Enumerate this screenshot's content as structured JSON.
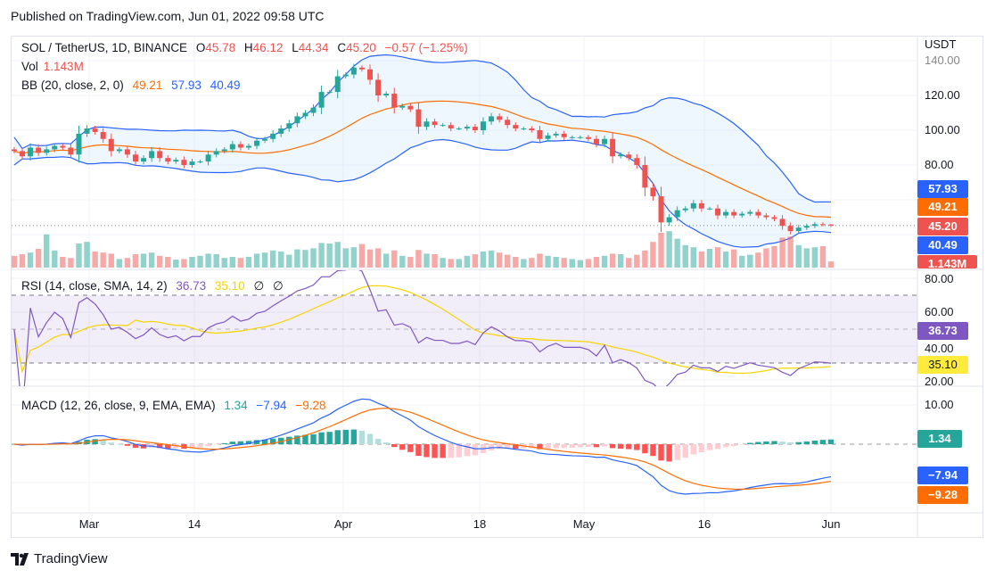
{
  "published": "Published on TradingView.com, Jun 01, 2022 09:58 UTC",
  "brand": "TradingView",
  "legend": {
    "symbol": "SOL / TetherUS, 1D, BINANCE",
    "o_label": "O",
    "o": "45.78",
    "h_label": "H",
    "h": "46.12",
    "l_label": "L",
    "l": "44.34",
    "c_label": "C",
    "c": "45.20",
    "change": "−0.57 (−1.25%)",
    "vol_label": "Vol",
    "vol": "1.143M",
    "bb_label": "BB (20, close, 2, 0)",
    "bb_basis": "49.21",
    "bb_upper": "57.93",
    "bb_lower": "40.49",
    "rsi_label": "RSI (14, close, SMA, 14, 2)",
    "rsi": "36.73",
    "rsi_ma": "35.10",
    "rsi_n1": "∅",
    "rsi_n2": "∅",
    "macd_label": "MACD (12, 26, close, 9, EMA, EMA)",
    "macd_hist": "1.34",
    "macd": "−7.94",
    "macd_signal": "−9.28"
  },
  "price_axis": {
    "unit": "USDT",
    "ticks": [
      "140.00",
      "120.00",
      "100.00",
      "80.00"
    ]
  },
  "rsi_axis": {
    "ticks": [
      "80.00",
      "60.00",
      "40.00",
      "20.00"
    ]
  },
  "macd_axis": {
    "ticks": [
      "10.00"
    ]
  },
  "time_axis": [
    "Mar",
    "14",
    "Apr",
    "18",
    "May",
    "16",
    "Jun"
  ],
  "colors": {
    "up": "#26a69a",
    "down": "#ef5350",
    "bb_band": "#2962ff",
    "bb_basis": "#ff6d00",
    "rsi": "#7e57c2",
    "rsi_ma": "#f5d400",
    "macd": "#2962ff",
    "signal": "#ff6d00"
  },
  "chart_data": {
    "type": "candlestick",
    "start_date": "2022-02-20",
    "end_date": "2022-06-01",
    "interval": "1D",
    "last_candle": {
      "open": 45.78,
      "high": 46.12,
      "low": 44.34,
      "close": 45.2
    },
    "closes": [
      88,
      85,
      90,
      87,
      89,
      91,
      90,
      86,
      98,
      101,
      99,
      95,
      88,
      89,
      86,
      82,
      84,
      88,
      84,
      82,
      83,
      80,
      82,
      82,
      86,
      88,
      89,
      92,
      90,
      91,
      94,
      95,
      98,
      101,
      104,
      108,
      110,
      113,
      122,
      122,
      131,
      132,
      136,
      135,
      129,
      120,
      121,
      113,
      114,
      112,
      102,
      105,
      103,
      103,
      101,
      101,
      102,
      100,
      105,
      108,
      106,
      103,
      101,
      101,
      100,
      95,
      97,
      98,
      96,
      96,
      96,
      95,
      92,
      95,
      85,
      86,
      84,
      80,
      67,
      62,
      47,
      50,
      54,
      55,
      58,
      55,
      55,
      51,
      53,
      51,
      52,
      53,
      51,
      50,
      49,
      45,
      42,
      44,
      45,
      46,
      45.78,
      45.2
    ],
    "volume_m": [
      2.2,
      2.5,
      2.8,
      3.5,
      6.2,
      3.2,
      2,
      1.8,
      4.5,
      4.8,
      3,
      2.8,
      2.6,
      1.6,
      1.8,
      2.5,
      2.6,
      2.8,
      2.2,
      2,
      1.5,
      1.6,
      2,
      2.2,
      2.6,
      2.5,
      1.8,
      2,
      1.8,
      2,
      2.6,
      2.8,
      3.2,
      3,
      2.4,
      3.4,
      3.3,
      3.6,
      4.6,
      4.5,
      4.8,
      3.6,
      3.8,
      4.4,
      3.4,
      3.6,
      2.6,
      3.2,
      2.2,
      2,
      3.3,
      2.6,
      2.5,
      1.8,
      1.6,
      1.6,
      2.2,
      2.5,
      3,
      3.2,
      2.8,
      2.4,
      2,
      1.6,
      1.8,
      2.6,
      2.2,
      2,
      1.8,
      1.6,
      1.4,
      1.6,
      2,
      2.2,
      2.6,
      2.5,
      1.8,
      2.4,
      3.2,
      4.8,
      6.5,
      6.8,
      5.4,
      4.2,
      3.8,
      3,
      3.5,
      3.8,
      3,
      3.4,
      2.2,
      2.4,
      2.8,
      3.6,
      4,
      5.6,
      5.8,
      4.2,
      3.6,
      3.8,
      4,
      1.143
    ]
  }
}
